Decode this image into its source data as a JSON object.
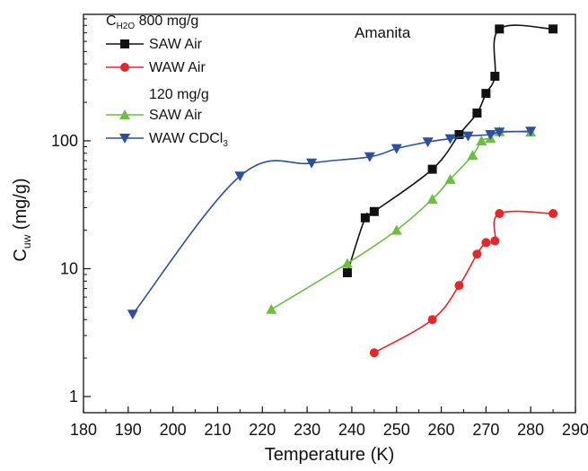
{
  "chart_data": {
    "type": "scatter",
    "title": "",
    "annotation": "Amanita",
    "xlabel": "Temperature (K)",
    "ylabel": {
      "main": "C",
      "sub": "uw",
      "rest": " (mg/g)"
    },
    "xlim": [
      180,
      290
    ],
    "ylim": [
      1,
      1000
    ],
    "yscale": "log",
    "x_ticks": [
      180,
      190,
      200,
      210,
      220,
      230,
      240,
      250,
      260,
      270,
      280,
      290
    ],
    "y_ticks": [
      1,
      10,
      100
    ],
    "legend_position": "top-left",
    "legend_headers": [
      {
        "main": "C",
        "sub": "H2O",
        "rest": " 800 mg/g"
      },
      {
        "main": "120 mg/g",
        "sub": "",
        "rest": ""
      }
    ],
    "series": [
      {
        "name": "SAW Air",
        "legend_main": "SAW Air",
        "legend_sub": "",
        "color": "#111111",
        "marker": "square",
        "x": [
          239,
          243,
          245,
          258,
          264,
          268,
          270,
          272,
          273,
          285
        ],
        "y": [
          9.3,
          25,
          28,
          60,
          112,
          165,
          235,
          320,
          750,
          750
        ]
      },
      {
        "name": "WAW Air",
        "legend_main": "WAW Air",
        "legend_sub": "",
        "color": "#e8262a",
        "marker": "circle",
        "x": [
          245,
          258,
          264,
          268,
          270,
          272,
          273,
          285
        ],
        "y": [
          2.2,
          4,
          7.4,
          13,
          16,
          16.5,
          27,
          27
        ]
      },
      {
        "name": "SAW Air",
        "legend_main": "SAW Air",
        "legend_sub": "",
        "color": "#6cbf3f",
        "marker": "triangle-up",
        "x": [
          222,
          239,
          250,
          258,
          262,
          267,
          269,
          271,
          273,
          280
        ],
        "y": [
          4.8,
          11,
          20,
          35,
          50,
          77,
          100,
          105,
          118,
          117
        ]
      },
      {
        "name": "WAW CDCl3",
        "legend_main": "WAW CDCl",
        "legend_sub": "3",
        "color": "#2c4fa0",
        "marker": "triangle-down",
        "x": [
          191,
          215,
          231,
          244,
          250,
          257,
          262,
          266,
          271,
          273,
          280
        ],
        "y": [
          4.4,
          53,
          67,
          75,
          87,
          98,
          104,
          109,
          112,
          117,
          119
        ]
      }
    ]
  }
}
